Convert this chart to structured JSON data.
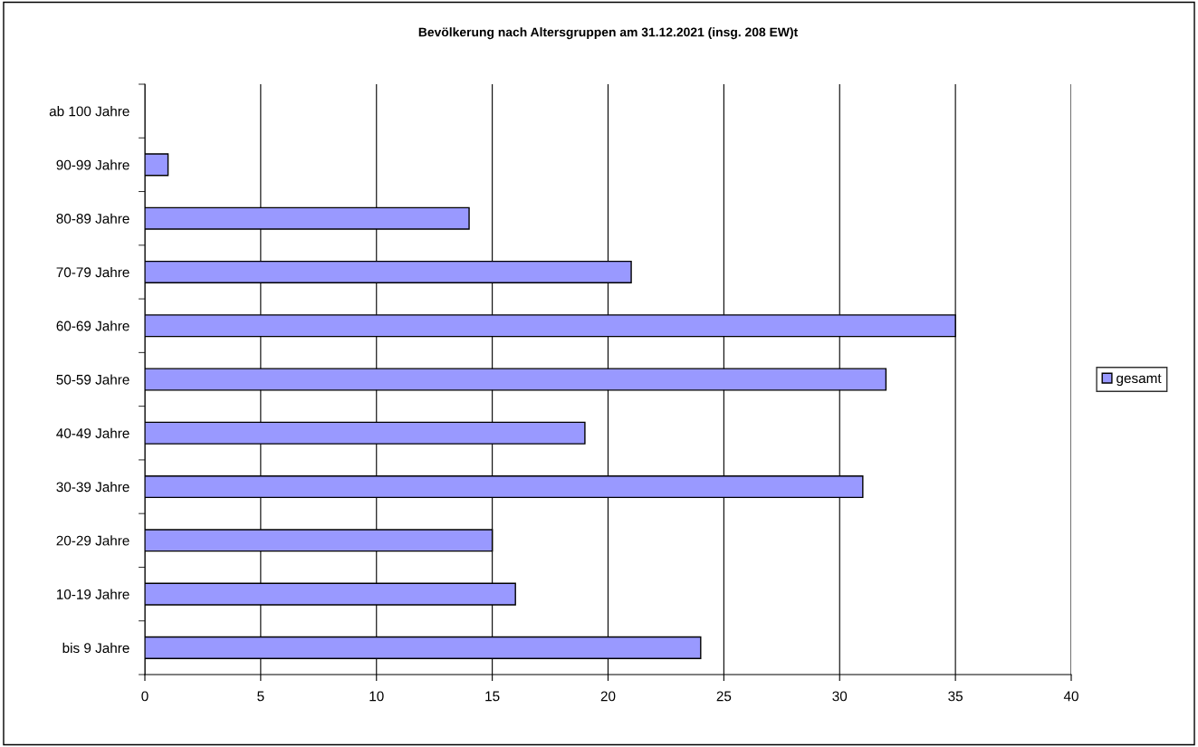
{
  "chart_data": {
    "type": "bar",
    "orientation": "horizontal",
    "title": "Bevölkerung nach Altersgruppen am 31.12.2021 (insg. 208 EW)t",
    "categories": [
      "ab 100 Jahre",
      "90-99 Jahre",
      "80-89 Jahre",
      "70-79 Jahre",
      "60-69 Jahre",
      "50-59 Jahre",
      "40-49 Jahre",
      "30-39 Jahre",
      "20-29 Jahre",
      "10-19 Jahre",
      "bis 9 Jahre"
    ],
    "series": [
      {
        "name": "gesamt",
        "color": "#9999ff",
        "values": [
          0,
          1,
          14,
          21,
          35,
          32,
          19,
          31,
          15,
          16,
          24
        ]
      }
    ],
    "xlim": [
      0,
      40
    ],
    "xticks": [
      0,
      5,
      10,
      15,
      20,
      25,
      30,
      35,
      40
    ],
    "grid": "x",
    "legend": "right"
  }
}
